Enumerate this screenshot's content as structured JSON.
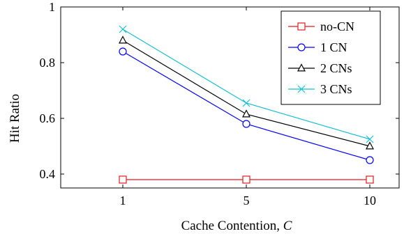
{
  "chart_data": {
    "type": "line",
    "title": "",
    "xlabel": "Cache Contention, ",
    "xlabel_var": "C",
    "ylabel": "Hit Ratio",
    "categories": [
      "1",
      "5",
      "10"
    ],
    "ylim": [
      0.35,
      1.0
    ],
    "yticks": [
      0.4,
      0.6,
      0.8,
      1.0
    ],
    "ytick_labels": [
      "0.4",
      "0.6",
      "0.8",
      "1"
    ],
    "grid": false,
    "legend_position": "top-right",
    "series": [
      {
        "name": "no-CN",
        "values": [
          0.38,
          0.38,
          0.38
        ],
        "color": "#e31a1c",
        "marker": "square"
      },
      {
        "name": "1 CN",
        "values": [
          0.84,
          0.58,
          0.45
        ],
        "color": "#0000ff",
        "marker": "circle"
      },
      {
        "name": "2 CNs",
        "values": [
          0.88,
          0.615,
          0.5
        ],
        "color": "#000000",
        "marker": "triangle"
      },
      {
        "name": "3 CNs",
        "values": [
          0.92,
          0.655,
          0.525
        ],
        "color": "#17becf",
        "marker": "x"
      }
    ]
  }
}
